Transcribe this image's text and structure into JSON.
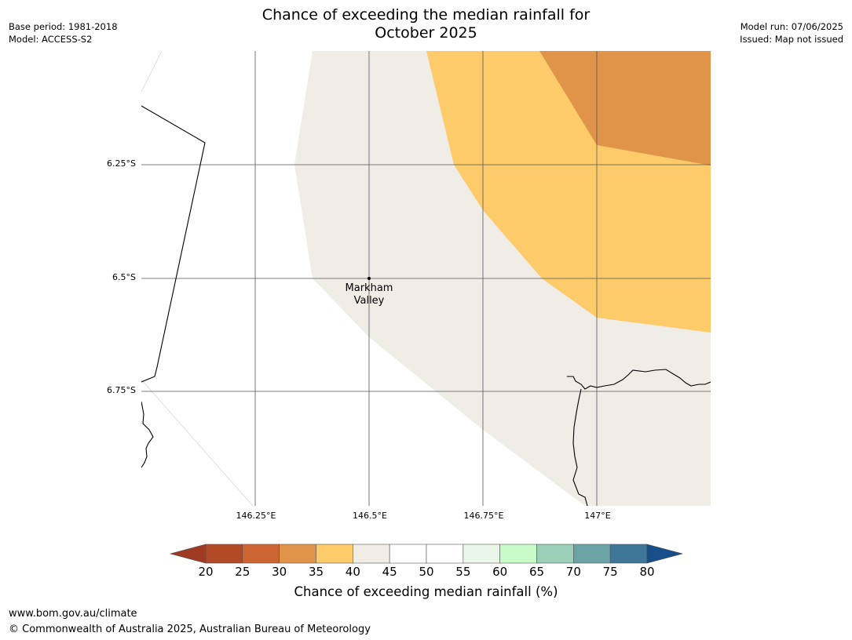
{
  "header": {
    "title_line1": "Chance of exceeding the median rainfall for",
    "title_line2": "October 2025",
    "base_period": "Base period: 1981-2018",
    "model": "Model: ACCESS-S2",
    "model_run": "Model run: 07/06/2025",
    "issued": "Issued: Map not issued"
  },
  "map": {
    "lat_labels": [
      "6.25°S",
      "6.5°S",
      "6.75°S"
    ],
    "lon_labels": [
      "146.25°E",
      "146.5°E",
      "146.75°E",
      "147°E"
    ],
    "city": {
      "line1": "Markham",
      "line2": "Valley"
    },
    "colors": {
      "band_35_40": "#e0944a",
      "band_40_45": "#fdcb6a",
      "band_45_50": "#f0ece6",
      "grid": "#555555",
      "coast": "#000000"
    }
  },
  "colorbar": {
    "title": "Chance of exceeding median rainfall (%)",
    "ticks": [
      "20",
      "25",
      "30",
      "35",
      "40",
      "45",
      "50",
      "55",
      "60",
      "65",
      "70",
      "75",
      "80"
    ],
    "under_color": "#9e3b22",
    "over_color": "#184f8a",
    "colors": [
      "#b24a27",
      "#cd6533",
      "#e0944a",
      "#fdcb6a",
      "#f0ece6",
      "#ffffff",
      "#ffffff",
      "#eaf6e9",
      "#c8fbc8",
      "#9ccfb7",
      "#6ca4a6",
      "#3f7799"
    ]
  },
  "footer": {
    "url": "www.bom.gov.au/climate",
    "copyright": "© Commonwealth of Australia 2025, Australian Bureau of Meteorology"
  }
}
